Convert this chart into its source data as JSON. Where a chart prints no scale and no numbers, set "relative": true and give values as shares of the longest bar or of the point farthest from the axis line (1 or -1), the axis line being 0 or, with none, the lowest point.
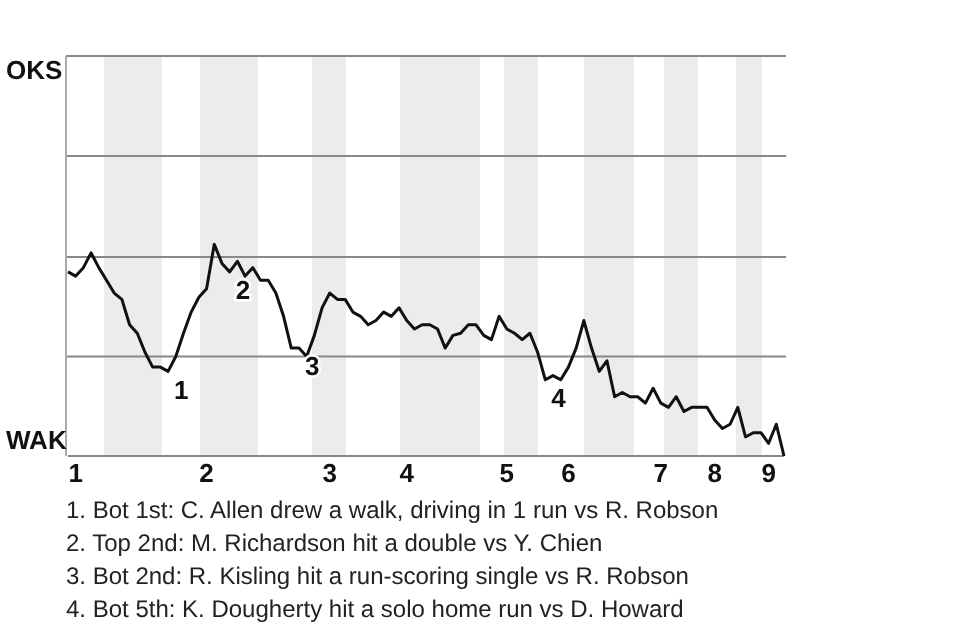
{
  "chart_data": {
    "type": "line",
    "relative": true,
    "categories": [
      null,
      "1",
      null,
      null,
      null,
      null,
      null,
      null,
      null,
      null,
      null,
      null,
      null,
      null,
      null,
      null,
      null,
      null,
      "2",
      null,
      null,
      null,
      null,
      null,
      null,
      null,
      null,
      null,
      null,
      null,
      null,
      null,
      null,
      null,
      "3",
      null,
      null,
      null,
      null,
      null,
      null,
      null,
      null,
      null,
      "4",
      null,
      null,
      null,
      null,
      null,
      null,
      null,
      null,
      null,
      null,
      null,
      null,
      "5",
      null,
      null,
      null,
      null,
      null,
      null,
      null,
      "6",
      null,
      null,
      null,
      null,
      null,
      null,
      null,
      null,
      null,
      null,
      null,
      "7",
      null,
      null,
      null,
      null,
      null,
      null,
      "8",
      null,
      null,
      null,
      null,
      null,
      null,
      "9",
      null,
      null
    ],
    "marker": "none",
    "ref_lines": [
      {
        "axis": "y",
        "value": 0.47,
        "color": "#888888"
      },
      {
        "axis": "y",
        "value": 0.94,
        "color": "#888888"
      }
    ],
    "line_style": "solid",
    "series": [
      {
        "color": "#111111",
        "values": [
          0.87,
          0.85,
          0.89,
          0.96,
          0.89,
          0.83,
          0.77,
          0.74,
          0.62,
          0.58,
          0.49,
          0.42,
          0.42,
          0.4,
          0.47,
          0.58,
          0.68,
          0.75,
          0.79,
          1,
          0.91,
          0.87,
          0.92,
          0.85,
          0.89,
          0.83,
          0.83,
          0.77,
          0.66,
          0.51,
          0.51,
          0.47,
          0.57,
          0.7,
          0.77,
          0.74,
          0.74,
          0.68,
          0.66,
          0.62,
          0.64,
          0.68,
          0.66,
          0.7,
          0.64,
          0.6,
          0.62,
          0.62,
          0.6,
          0.51,
          0.57,
          0.58,
          0.62,
          0.62,
          0.57,
          0.55,
          0.66,
          0.6,
          0.58,
          0.55,
          0.58,
          0.49,
          0.36,
          0.38,
          0.36,
          0.42,
          0.51,
          0.64,
          0.51,
          0.4,
          0.45,
          0.28,
          0.3,
          0.28,
          0.28,
          0.25,
          0.32,
          0.25,
          0.23,
          0.28,
          0.21,
          0.23,
          0.23,
          0.23,
          0.17,
          0.13,
          0.15,
          0.23,
          0.09,
          0.11,
          0.11,
          0.06,
          0.15,
          0
        ]
      }
    ],
    "annotations": [
      "OKS",
      "WAK",
      "1",
      "2",
      "3",
      "4",
      "1. Bot 1st: C. Allen drew a walk, driving in 1 run vs R. Robson",
      "2. Top 2nd: M. Richardson hit a double vs Y. Chien",
      "3. Bot 2nd: R. Kisling hit a run-scoring single vs R. Robson",
      "4. Bot 5th: K. Dougherty hit a solo home run vs D. Howard"
    ]
  }
}
